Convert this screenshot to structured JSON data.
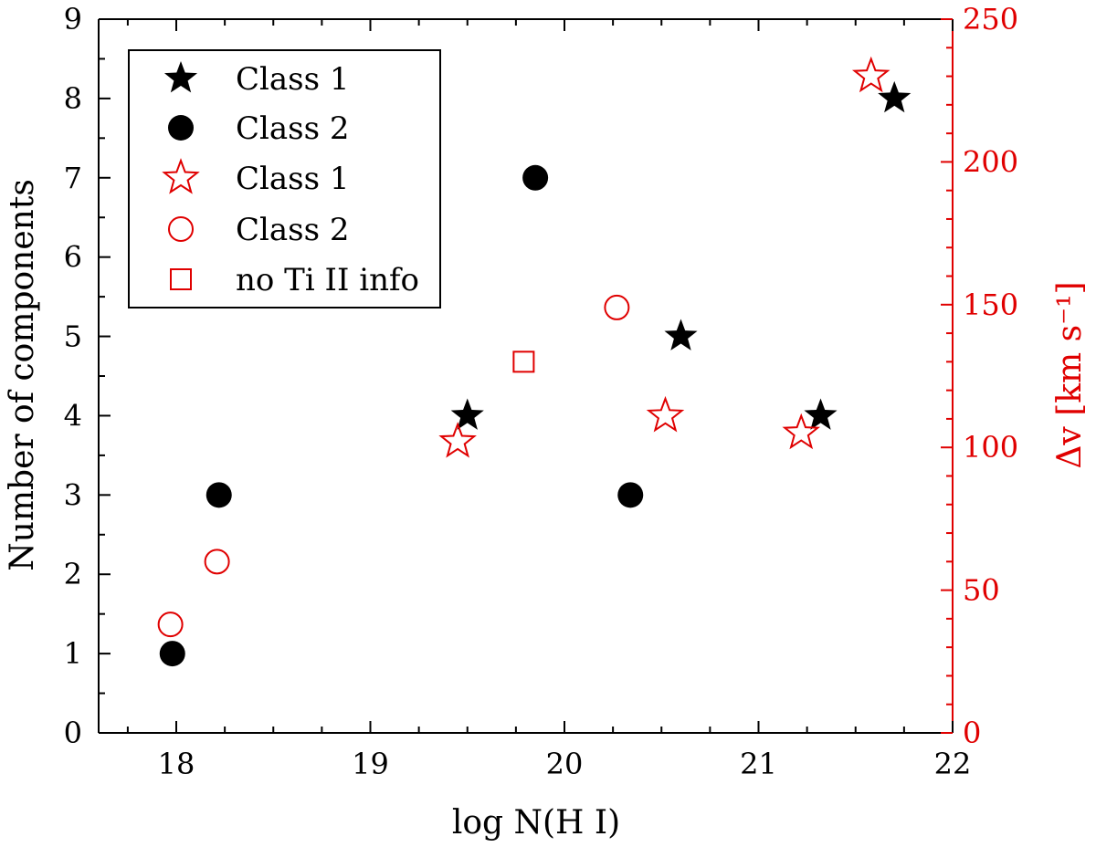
{
  "chart_data": {
    "type": "scatter",
    "xlabel": "log N(H I)",
    "ylabel_left": "Number of components",
    "ylabel_right": "Δv [km s⁻¹]",
    "x_range": [
      17.6,
      22.0
    ],
    "y_left_range": [
      0,
      9
    ],
    "y_right_range": [
      0,
      250
    ],
    "x_ticks": [
      "18",
      "19",
      "20",
      "21",
      "22"
    ],
    "y_left_ticks": [
      "0",
      "1",
      "2",
      "3",
      "4",
      "5",
      "6",
      "7",
      "8",
      "9"
    ],
    "y_right_ticks": [
      "0",
      "50",
      "100",
      "150",
      "200",
      "250"
    ],
    "colors": {
      "black": "#000000",
      "red": "#e00000"
    },
    "series": [
      {
        "name": "Class 1",
        "axis": "left",
        "marker": "star-filled",
        "color": "#000000",
        "points": [
          {
            "x": 19.5,
            "y": 4
          },
          {
            "x": 20.6,
            "y": 5
          },
          {
            "x": 21.32,
            "y": 4
          },
          {
            "x": 21.7,
            "y": 8
          }
        ]
      },
      {
        "name": "Class 2",
        "axis": "left",
        "marker": "circle-filled",
        "color": "#000000",
        "points": [
          {
            "x": 17.98,
            "y": 1
          },
          {
            "x": 18.22,
            "y": 3
          },
          {
            "x": 19.85,
            "y": 7
          },
          {
            "x": 20.34,
            "y": 3
          }
        ]
      },
      {
        "name": "Class 1",
        "axis": "right",
        "marker": "star-open",
        "color": "#e00000",
        "points": [
          {
            "x": 19.45,
            "y": 102
          },
          {
            "x": 20.52,
            "y": 111
          },
          {
            "x": 21.22,
            "y": 105
          },
          {
            "x": 21.58,
            "y": 230
          }
        ]
      },
      {
        "name": "Class 2",
        "axis": "right",
        "marker": "circle-open",
        "color": "#e00000",
        "points": [
          {
            "x": 17.97,
            "y": 38
          },
          {
            "x": 18.21,
            "y": 60
          },
          {
            "x": 20.27,
            "y": 149
          }
        ]
      },
      {
        "name": "no Ti II info",
        "axis": "right",
        "marker": "square-open",
        "color": "#e00000",
        "points": [
          {
            "x": 19.79,
            "y": 130
          }
        ]
      }
    ],
    "legend": [
      {
        "label": "Class 1",
        "marker": "star-filled",
        "color": "#000000"
      },
      {
        "label": "Class 2",
        "marker": "circle-filled",
        "color": "#000000"
      },
      {
        "label": "Class 1",
        "marker": "star-open",
        "color": "#e00000"
      },
      {
        "label": "Class 2",
        "marker": "circle-open",
        "color": "#e00000"
      },
      {
        "label": "no Ti II info",
        "marker": "square-open",
        "color": "#e00000"
      }
    ]
  }
}
